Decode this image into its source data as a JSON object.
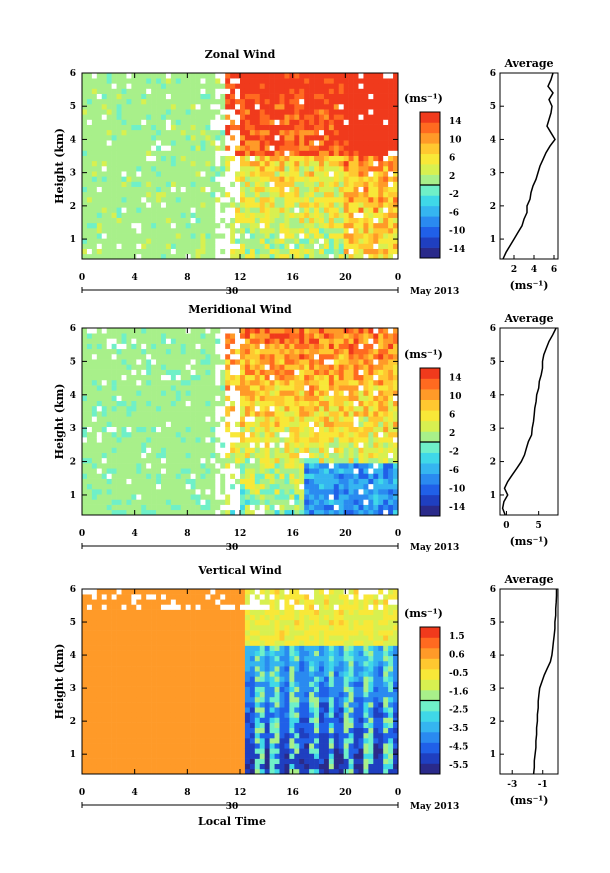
{
  "chart_data": [
    {
      "type": "heatmap",
      "title": "Zonal Wind",
      "xlabel": "",
      "ylabel": "Height (km)",
      "x_ticks": [
        "0",
        "4",
        "8",
        "12",
        "16",
        "20",
        "0"
      ],
      "y_ticks": [
        "1",
        "2",
        "3",
        "4",
        "5",
        "6"
      ],
      "xlim": [
        0,
        24
      ],
      "ylim": [
        0.4,
        6
      ],
      "date_label": "30",
      "date_suffix": "May 2013",
      "colorbar": {
        "unit": "(ms⁻¹)",
        "ticks": [
          "14",
          "10",
          "6",
          "2",
          "-2",
          "-6",
          "-10",
          "-14"
        ],
        "range": [
          -16,
          16
        ]
      },
      "average_profile": {
        "title": "Average",
        "xlabel": "(ms⁻¹)",
        "x_ticks": [
          "2",
          "4",
          "6"
        ],
        "xlim": [
          0.6,
          6.4
        ],
        "height": [
          0.4,
          0.6,
          0.8,
          1.0,
          1.2,
          1.4,
          1.6,
          1.8,
          2.0,
          2.2,
          2.4,
          2.6,
          2.8,
          3.0,
          3.2,
          3.4,
          3.6,
          3.8,
          4.0,
          4.2,
          4.4,
          4.6,
          4.8,
          5.0,
          5.2,
          5.4,
          5.6,
          5.8,
          6.0
        ],
        "values": [
          0.9,
          1.2,
          1.6,
          2.0,
          2.4,
          2.8,
          3.0,
          3.3,
          3.3,
          3.6,
          3.7,
          3.9,
          4.2,
          4.4,
          4.6,
          4.9,
          5.2,
          5.6,
          6.1,
          5.7,
          5.3,
          5.5,
          5.7,
          5.8,
          5.5,
          5.9,
          5.4,
          5.7,
          5.9
        ]
      }
    },
    {
      "type": "heatmap",
      "title": "Meridional Wind",
      "xlabel": "",
      "ylabel": "Height (km)",
      "x_ticks": [
        "0",
        "4",
        "8",
        "12",
        "16",
        "20",
        "0"
      ],
      "y_ticks": [
        "1",
        "2",
        "3",
        "4",
        "5",
        "6"
      ],
      "xlim": [
        0,
        24
      ],
      "ylim": [
        0.4,
        6
      ],
      "date_label": "30",
      "date_suffix": "May 2013",
      "colorbar": {
        "unit": "(ms⁻¹)",
        "ticks": [
          "14",
          "10",
          "6",
          "2",
          "-2",
          "-6",
          "-10",
          "-14"
        ],
        "range": [
          -16,
          16
        ]
      },
      "average_profile": {
        "title": "Average",
        "xlabel": "(ms⁻¹)",
        "x_ticks": [
          "0",
          "5"
        ],
        "xlim": [
          -1,
          8
        ],
        "height": [
          0.4,
          0.6,
          0.8,
          1.0,
          1.2,
          1.4,
          1.6,
          1.8,
          2.0,
          2.2,
          2.4,
          2.6,
          2.8,
          3.0,
          3.2,
          3.4,
          3.6,
          3.8,
          4.0,
          4.2,
          4.4,
          4.6,
          4.8,
          5.0,
          5.2,
          5.4,
          5.6,
          5.8,
          6.0
        ],
        "values": [
          -0.2,
          -0.6,
          -0.4,
          0.2,
          -0.3,
          0.2,
          0.9,
          1.6,
          2.3,
          2.8,
          3.1,
          3.4,
          3.9,
          4.0,
          4.2,
          4.3,
          4.4,
          4.6,
          4.7,
          5.0,
          5.1,
          5.4,
          5.6,
          5.6,
          5.8,
          6.2,
          6.6,
          7.2,
          7.7
        ]
      }
    },
    {
      "type": "heatmap",
      "title": "Vertical Wind",
      "xlabel": "Local Time",
      "ylabel": "Height (km)",
      "x_ticks": [
        "0",
        "4",
        "8",
        "12",
        "16",
        "20",
        "0"
      ],
      "y_ticks": [
        "1",
        "2",
        "3",
        "4",
        "5",
        "6"
      ],
      "xlim": [
        0,
        24
      ],
      "ylim": [
        0.4,
        6
      ],
      "date_label": "30",
      "date_suffix": "May 2013",
      "colorbar": {
        "unit": "(ms⁻¹)",
        "ticks": [
          "1.5",
          "0.6",
          "-0.5",
          "-1.6",
          "-2.5",
          "-3.5",
          "-4.5",
          "-5.5"
        ],
        "range": [
          -6,
          2
        ]
      },
      "average_profile": {
        "title": "Average",
        "xlabel": "(ms⁻¹)",
        "x_ticks": [
          "-3",
          "-1"
        ],
        "xlim": [
          -3.8,
          0
        ],
        "height": [
          0.4,
          0.6,
          0.8,
          1.0,
          1.2,
          1.4,
          1.6,
          1.8,
          2.0,
          2.2,
          2.4,
          2.6,
          2.8,
          3.0,
          3.2,
          3.4,
          3.6,
          3.8,
          4.0,
          4.2,
          4.4,
          4.6,
          4.8,
          5.0,
          5.2,
          5.4,
          5.6,
          5.8,
          6.0
        ],
        "values": [
          -1.6,
          -1.55,
          -1.55,
          -1.5,
          -1.45,
          -1.45,
          -1.4,
          -1.4,
          -1.35,
          -1.35,
          -1.3,
          -1.3,
          -1.25,
          -1.2,
          -1.05,
          -0.9,
          -0.7,
          -0.5,
          -0.4,
          -0.35,
          -0.3,
          -0.25,
          -0.2,
          -0.2,
          -0.15,
          -0.15,
          -0.12,
          -0.1,
          -0.1
        ]
      }
    }
  ]
}
